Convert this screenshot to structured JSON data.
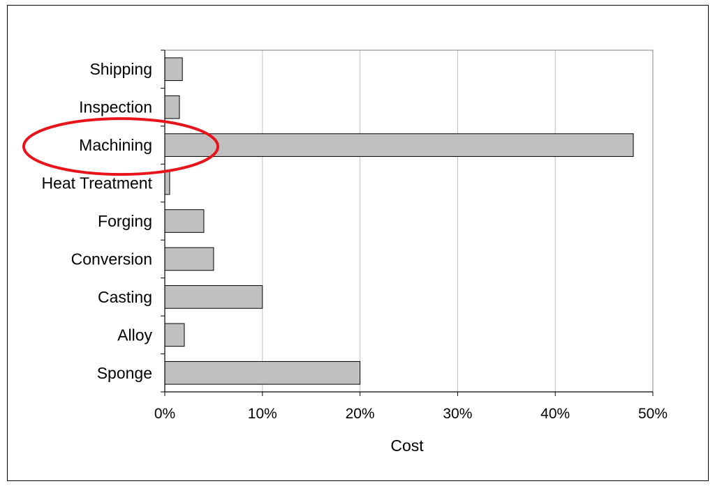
{
  "chart_data": {
    "type": "bar",
    "orientation": "horizontal",
    "categories": [
      "Shipping",
      "Inspection",
      "Machining",
      "Heat Treatment",
      "Forging",
      "Conversion",
      "Casting",
      "Alloy",
      "Sponge"
    ],
    "values": [
      1.8,
      1.5,
      48,
      0.5,
      4,
      5,
      10,
      2,
      20
    ],
    "xlabel": "Cost",
    "ylabel": "",
    "xlim": [
      0,
      50
    ],
    "xticks": [
      0,
      10,
      20,
      30,
      40,
      50
    ],
    "xtick_labels": [
      "0%",
      "10%",
      "20%",
      "30%",
      "40%",
      "50%"
    ],
    "grid": "vertical",
    "bar_color": "#c0c0c0",
    "highlight": {
      "category": "Machining",
      "shape": "ellipse",
      "color": "#e8141b"
    }
  }
}
